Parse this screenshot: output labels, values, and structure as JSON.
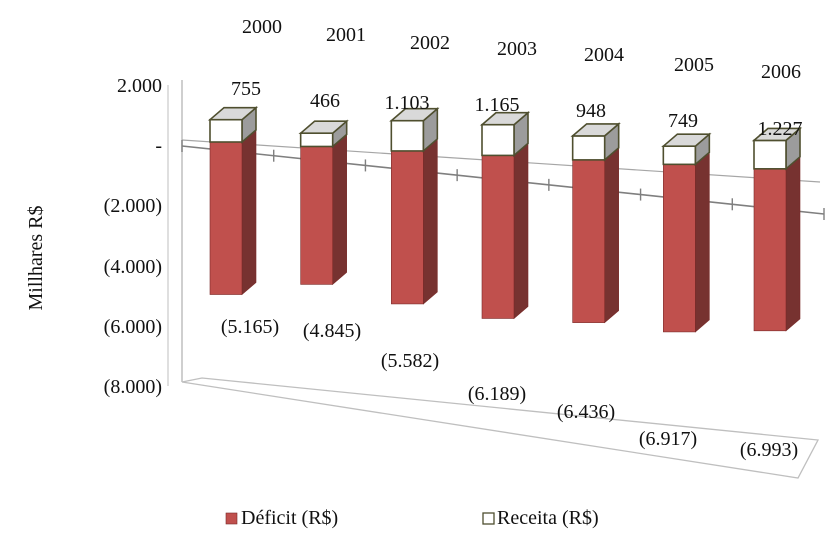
{
  "chart_data": {
    "type": "bar",
    "stacked": true,
    "three_d": true,
    "categories": [
      "2000",
      "2001",
      "2002",
      "2003",
      "2004",
      "2005",
      "2006"
    ],
    "series": [
      {
        "name": "Déficit (R$)",
        "values": [
          -5165,
          -4845,
          -5582,
          -6189,
          -6436,
          -6917,
          -6993
        ],
        "labels": [
          "(5.165)",
          "(4.845)",
          "(5.582)",
          "(6.189)",
          "(6.436)",
          "(6.917)",
          "(6.993)"
        ],
        "color": "#c0504d"
      },
      {
        "name": "Receita (R$)",
        "values": [
          755,
          466,
          1103,
          1165,
          948,
          749,
          1227
        ],
        "labels": [
          "755",
          "466",
          "1.103",
          "1.165",
          "948",
          "749",
          "1.227"
        ],
        "color": "#ffffff"
      }
    ],
    "ylabel": "Millhares R$",
    "ylim": [
      -8000,
      2000
    ],
    "yticks": [
      2000,
      0,
      -2000,
      -4000,
      -6000,
      -8000
    ],
    "ytick_labels": [
      "2.000",
      "-",
      "(2.000)",
      "(4.000)",
      "(6.000)",
      "(8.000)"
    ],
    "legend_position": "bottom",
    "grid": false
  }
}
